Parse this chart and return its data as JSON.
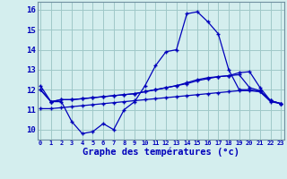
{
  "title": "Graphe des températures (°c)",
  "bg_color": "#d4eeee",
  "line_color": "#0000bb",
  "grid_color": "#a0c8c8",
  "spine_color": "#7090a0",
  "x_ticks": [
    0,
    1,
    2,
    3,
    4,
    5,
    6,
    7,
    8,
    9,
    10,
    11,
    12,
    13,
    14,
    15,
    16,
    17,
    18,
    19,
    20,
    21,
    22,
    23
  ],
  "ylim": [
    9.5,
    16.4
  ],
  "xlim": [
    -0.3,
    23.3
  ],
  "y_ticks": [
    10,
    11,
    12,
    13,
    14,
    15,
    16
  ],
  "line1": [
    12.2,
    11.4,
    11.4,
    10.4,
    9.8,
    9.9,
    10.3,
    10.0,
    11.0,
    11.4,
    12.2,
    13.2,
    13.9,
    14.0,
    15.8,
    15.9,
    15.4,
    14.8,
    13.0,
    12.0,
    12.0,
    11.9,
    11.4,
    11.3
  ],
  "line2": [
    12.0,
    11.4,
    11.5,
    11.5,
    11.55,
    11.6,
    11.65,
    11.7,
    11.75,
    11.8,
    11.9,
    12.0,
    12.1,
    12.2,
    12.3,
    12.45,
    12.55,
    12.65,
    12.7,
    12.85,
    12.9,
    12.1,
    11.45,
    11.3
  ],
  "line3": [
    12.0,
    11.4,
    11.5,
    11.5,
    11.55,
    11.6,
    11.65,
    11.7,
    11.75,
    11.8,
    11.9,
    12.0,
    12.1,
    12.2,
    12.35,
    12.5,
    12.6,
    12.65,
    12.7,
    12.75,
    12.1,
    11.95,
    11.45,
    11.3
  ],
  "line4": [
    11.05,
    11.05,
    11.1,
    11.15,
    11.2,
    11.25,
    11.3,
    11.35,
    11.4,
    11.45,
    11.5,
    11.55,
    11.6,
    11.65,
    11.7,
    11.75,
    11.8,
    11.85,
    11.9,
    11.95,
    11.95,
    11.9,
    11.45,
    11.3
  ]
}
